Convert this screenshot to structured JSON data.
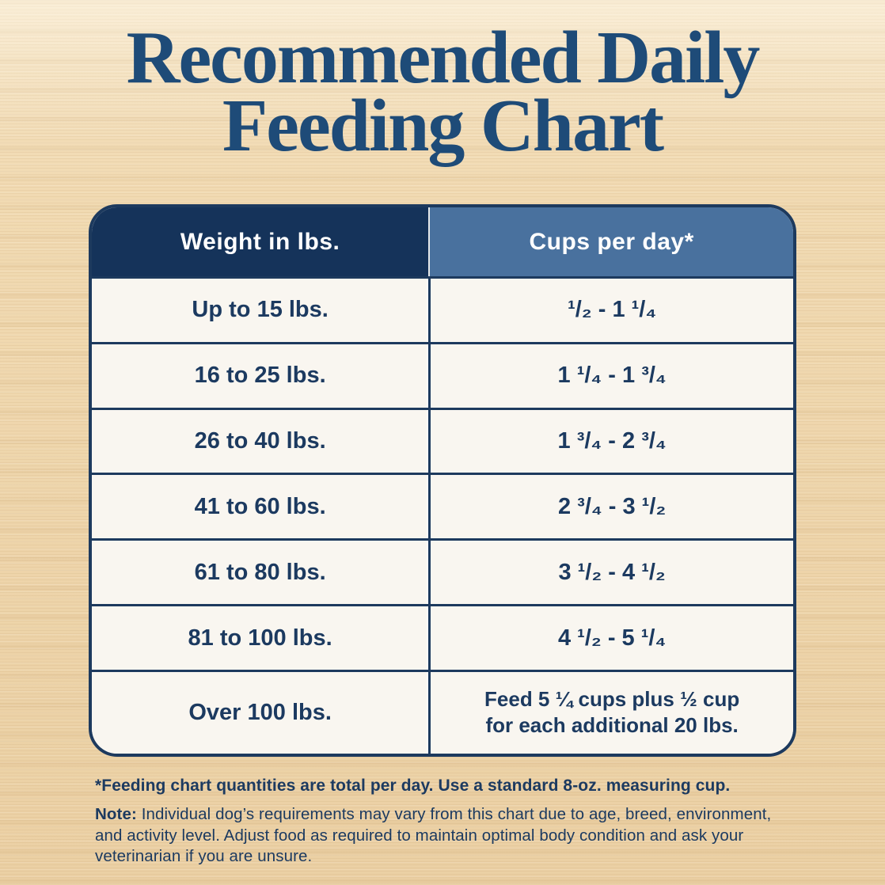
{
  "title": {
    "line1": "Recommended Daily",
    "line2": "Feeding Chart"
  },
  "table": {
    "headers": {
      "weight": "Weight in lbs.",
      "cups": "Cups per day*"
    },
    "rows": [
      {
        "weight": "Up to 15 lbs.",
        "cups": "¹/₂ - 1 ¹/₄"
      },
      {
        "weight": "16 to 25 lbs.",
        "cups": "1 ¹/₄ - 1 ³/₄"
      },
      {
        "weight": "26 to 40 lbs.",
        "cups": "1 ³/₄ - 2 ³/₄"
      },
      {
        "weight": "41 to 60 lbs.",
        "cups": "2 ³/₄ - 3 ¹/₂"
      },
      {
        "weight": "61 to 80 lbs.",
        "cups": "3 ¹/₂ - 4 ¹/₂"
      },
      {
        "weight": "81 to 100 lbs.",
        "cups": "4 ¹/₂ - 5 ¹/₄"
      },
      {
        "weight": "Over 100 lbs.",
        "cups": "Feed 5 ¼ cups plus ½ cup for each additional 20 lbs."
      }
    ]
  },
  "footnotes": {
    "asterisk": "*Feeding chart quantities are total per day. Use a standard 8-oz. measuring cup.",
    "note_label": "Note:",
    "note_text": "Individual dog’s requirements may vary from this chart due to age, breed, environment, and activity level. Adjust food as required to maintain optimal body condition and ask your veterinarian if you are unsure."
  },
  "colors": {
    "title_blue": "#1e4b78",
    "header_dark_navy": "#15335a",
    "header_light_blue": "#49719e",
    "table_border_navy": "#1d3a5e",
    "cell_background": "#f9f6f0",
    "cell_text_navy": "#1c3a60",
    "wood_background": "#efd6ab"
  },
  "chart_data": {
    "type": "table",
    "title": "Recommended Daily Feeding Chart",
    "columns": [
      "Weight in lbs.",
      "Cups per day*"
    ],
    "rows": [
      [
        "Up to 15 lbs.",
        "1/2 - 1 1/4"
      ],
      [
        "16 to 25 lbs.",
        "1 1/4 - 1 3/4"
      ],
      [
        "26 to 40 lbs.",
        "1 3/4 - 2 3/4"
      ],
      [
        "41 to 60 lbs.",
        "2 3/4 - 3 1/2"
      ],
      [
        "61 to 80 lbs.",
        "3 1/2 - 4 1/2"
      ],
      [
        "81 to 100 lbs.",
        "4 1/2 - 5 1/4"
      ],
      [
        "Over 100 lbs.",
        "Feed 5 1/4 cups plus 1/2 cup for each additional 20 lbs."
      ]
    ],
    "weight_ranges_lbs": [
      [
        0,
        15
      ],
      [
        16,
        25
      ],
      [
        26,
        40
      ],
      [
        41,
        60
      ],
      [
        61,
        80
      ],
      [
        81,
        100
      ],
      [
        100,
        null
      ]
    ],
    "cups_per_day_min": [
      0.5,
      1.25,
      1.75,
      2.75,
      3.5,
      4.5,
      5.25
    ],
    "cups_per_day_max": [
      1.25,
      1.75,
      2.75,
      3.5,
      4.5,
      5.25,
      null
    ],
    "over_100_rule": "5.25 cups plus 0.5 cup for each additional 20 lbs."
  }
}
